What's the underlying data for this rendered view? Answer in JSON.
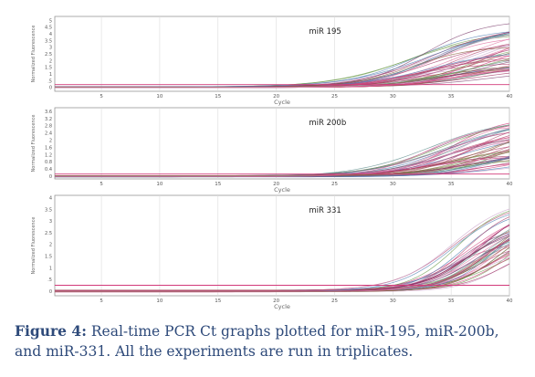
{
  "caption": {
    "label": "Figure 4:",
    "text": "Real-time PCR Ct graphs plotted for miR-195, miR-200b, and miR-331. All the experiments are run in triplicates."
  },
  "colors": {
    "panel_bg": "#ffffff",
    "grid": "#dcdcdc",
    "axis": "#888888",
    "threshold": "#d23a7a",
    "caption": "#2e4a7a",
    "curves": [
      "#d23a7a",
      "#b0406a",
      "#7a3a6a",
      "#6a9a4a",
      "#4a7ab0",
      "#c8a0c8",
      "#8a5a3a",
      "#e070a0",
      "#5a8a8a",
      "#a03060"
    ]
  },
  "chart_data": [
    {
      "type": "line",
      "title": "miR 195",
      "xlabel": "Cycle",
      "ylabel": "Normalized Fluorescence",
      "x_ticks": [
        "5",
        "10",
        "15",
        "20",
        "25",
        "30",
        "35",
        "40"
      ],
      "y_ticks": [
        "0",
        ".5",
        "1",
        "1.5",
        "2",
        "2.5",
        "3",
        "3.5",
        "4",
        "4.5",
        "5"
      ],
      "xlim": [
        1,
        40
      ],
      "ylim": [
        -0.3,
        5.3
      ],
      "grid": true,
      "threshold": 0.2,
      "curves": {
        "count": 48,
        "onset_cycle_range": [
          25,
          31
        ],
        "plateau_range": [
          1.2,
          5.0
        ],
        "steepness_range": [
          0.28,
          0.4
        ]
      }
    },
    {
      "type": "line",
      "title": "miR 200b",
      "xlabel": "Cycle",
      "ylabel": "Normalized Fluorescence",
      "x_ticks": [
        "5",
        "10",
        "15",
        "20",
        "25",
        "30",
        "35",
        "40"
      ],
      "y_ticks": [
        "0",
        "0.4",
        "0.8",
        "1.2",
        "1.6",
        "2",
        "2.4",
        "2.8",
        "3.2",
        "3.6"
      ],
      "xlim": [
        1,
        40
      ],
      "ylim": [
        -0.15,
        3.8
      ],
      "grid": true,
      "threshold": 0.12,
      "curves": {
        "count": 48,
        "onset_cycle_range": [
          27,
          33
        ],
        "plateau_range": [
          0.8,
          3.4
        ],
        "steepness_range": [
          0.3,
          0.45
        ]
      }
    },
    {
      "type": "line",
      "title": "miR 331",
      "xlabel": "Cycle",
      "ylabel": "Normalized Fluorescence",
      "x_ticks": [
        "5",
        "10",
        "15",
        "20",
        "25",
        "30",
        "35",
        "40"
      ],
      "y_ticks": [
        "0",
        ".5",
        "1",
        "1.5",
        "2",
        "2.5",
        "3",
        "3.5",
        "4"
      ],
      "xlim": [
        1,
        40
      ],
      "ylim": [
        -0.2,
        4.1
      ],
      "grid": true,
      "threshold": 0.25,
      "curves": {
        "count": 48,
        "onset_cycle_range": [
          29,
          33
        ],
        "plateau_range": [
          2.0,
          4.0
        ],
        "steepness_range": [
          0.38,
          0.5
        ]
      }
    }
  ]
}
